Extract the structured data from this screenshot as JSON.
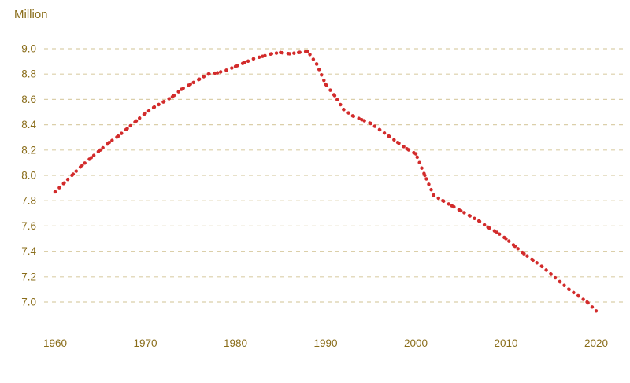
{
  "chart_data": {
    "type": "line",
    "title": "",
    "ylabel": "Million",
    "xlabel": "",
    "legend": "none",
    "grid": "dashed-horizontal",
    "line_style": "dotted",
    "x": [
      1960,
      1961,
      1962,
      1963,
      1964,
      1965,
      1966,
      1967,
      1968,
      1969,
      1970,
      1971,
      1972,
      1973,
      1974,
      1975,
      1976,
      1977,
      1978,
      1979,
      1980,
      1981,
      1982,
      1983,
      1984,
      1985,
      1986,
      1987,
      1988,
      1989,
      1990,
      1991,
      1992,
      1993,
      1994,
      1995,
      1996,
      1997,
      1998,
      1999,
      2000,
      2001,
      2002,
      2003,
      2004,
      2005,
      2006,
      2007,
      2008,
      2009,
      2010,
      2011,
      2012,
      2013,
      2014,
      2015,
      2016,
      2017,
      2018,
      2019,
      2020
    ],
    "values": [
      7.87,
      7.94,
      8.01,
      8.08,
      8.14,
      8.2,
      8.26,
      8.31,
      8.37,
      8.43,
      8.49,
      8.54,
      8.58,
      8.62,
      8.68,
      8.72,
      8.76,
      8.8,
      8.81,
      8.83,
      8.86,
      8.89,
      8.92,
      8.94,
      8.96,
      8.97,
      8.96,
      8.97,
      8.98,
      8.88,
      8.72,
      8.63,
      8.52,
      8.47,
      8.44,
      8.41,
      8.36,
      8.31,
      8.26,
      8.21,
      8.17,
      8.0,
      7.84,
      7.8,
      7.76,
      7.72,
      7.68,
      7.64,
      7.59,
      7.55,
      7.5,
      7.44,
      7.38,
      7.33,
      7.28,
      7.22,
      7.16,
      7.1,
      7.05,
      7.0,
      6.93
    ],
    "xticks": [
      1960,
      1970,
      1980,
      1990,
      2000,
      2010,
      2020
    ],
    "yticks": [
      7.0,
      7.2,
      7.4,
      7.6,
      7.8,
      8.0,
      8.2,
      8.4,
      8.6,
      8.8,
      9.0
    ],
    "xlim": [
      1960,
      2020
    ],
    "ylim": [
      6.85,
      9.1
    ],
    "colors": {
      "line": "#d22b2b",
      "axis_text": "#8a6d1a",
      "grid": "#dbcfa9"
    }
  }
}
